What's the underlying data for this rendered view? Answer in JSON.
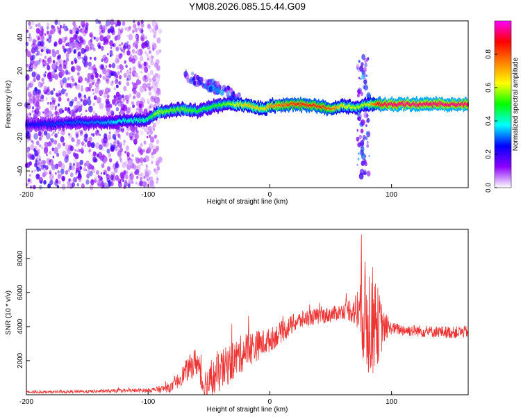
{
  "figure_title": "YM08.2026.085.15.44.G09",
  "chart_data": [
    {
      "type": "heatmap",
      "title": "YM08.2026.085.15.44.G09",
      "xlabel": "Height of straight line (km)",
      "ylabel": "Frequency (Hz)",
      "xlim": [
        -200,
        163
      ],
      "ylim": [
        -50,
        50
      ],
      "xticks": [
        -200,
        -100,
        0,
        100
      ],
      "xtick_labels": [
        "-200",
        "-100",
        "0",
        "100"
      ],
      "yticks": [
        -40,
        -20,
        0,
        20,
        40
      ],
      "ytick_labels": [
        "-40",
        "-20",
        "0",
        "20",
        "40"
      ],
      "colorbar": {
        "label": "Normalized spectral amplitude",
        "range": [
          0,
          1
        ],
        "ticks": [
          0.0,
          0.2,
          0.4,
          0.6,
          0.8
        ],
        "tick_labels": [
          "0.0",
          "0.2",
          "0.4",
          "0.6",
          "0.8"
        ],
        "colors": [
          "#ffffff",
          "#8c00ff",
          "#0000ff",
          "#00ffff",
          "#00ff00",
          "#ffff00",
          "#ff8000",
          "#ff0000",
          "#ff00ff"
        ]
      },
      "ridge": {
        "x": [
          -200,
          -180,
          -160,
          -140,
          -120,
          -100,
          -92,
          -85,
          -70,
          -60,
          -45,
          -35,
          -25,
          -15,
          -5,
          0,
          20,
          40,
          50,
          60,
          70,
          80,
          90,
          100,
          120,
          140,
          163
        ],
        "freq": [
          -12,
          -12,
          -11,
          -11,
          -10,
          -9,
          -5,
          -4,
          -3,
          -4,
          -1,
          0,
          0,
          -1,
          -3,
          -1,
          0,
          -1,
          -3,
          -1,
          -2,
          0,
          0,
          0,
          0,
          0,
          0
        ],
        "amplitude": [
          0.25,
          0.28,
          0.3,
          0.32,
          0.4,
          0.45,
          0.6,
          0.55,
          0.55,
          0.5,
          0.5,
          0.55,
          0.65,
          0.7,
          0.65,
          0.75,
          0.85,
          0.85,
          0.8,
          0.65,
          0.6,
          0.6,
          0.9,
          0.95,
          0.95,
          0.95,
          0.95
        ]
      },
      "features": [
        {
          "name": "noise region",
          "x_range": [
            -200,
            -90
          ],
          "freq_range": [
            -50,
            50
          ],
          "amplitude": 0.15
        },
        {
          "name": "upper branches",
          "x_range": [
            -70,
            -25
          ],
          "freq_range": [
            0,
            20
          ],
          "amplitude": 0.4
        },
        {
          "name": "spike near 78 km",
          "x_range": [
            72,
            82
          ],
          "freq_range": [
            -45,
            30
          ],
          "amplitude": 0.3
        }
      ]
    },
    {
      "type": "line",
      "title": "",
      "xlabel": "Height of straight line (km)",
      "ylabel": "SNR (10 * v/v)",
      "xlim": [
        -200,
        163
      ],
      "ylim": [
        0,
        9700
      ],
      "xticks": [
        -200,
        -100,
        0,
        100
      ],
      "xtick_labels": [
        "-200",
        "-100",
        "0",
        "100"
      ],
      "yticks": [
        2000,
        4000,
        6000,
        8000
      ],
      "ytick_labels": [
        "2000",
        "4000",
        "6000",
        "8000"
      ],
      "color": "#ee3333",
      "trend": {
        "x": [
          -200,
          -160,
          -120,
          -100,
          -90,
          -80,
          -70,
          -60,
          -55,
          -50,
          -40,
          -30,
          -20,
          -10,
          0,
          10,
          20,
          30,
          40,
          50,
          60,
          65,
          70,
          75,
          80,
          85,
          90,
          95,
          100,
          110,
          120,
          130,
          140,
          150,
          163
        ],
        "y": [
          150,
          180,
          230,
          260,
          320,
          450,
          1300,
          2000,
          600,
          700,
          1400,
          2000,
          2600,
          2900,
          3200,
          3700,
          4200,
          4500,
          4600,
          4700,
          4900,
          5000,
          4900,
          5000,
          4500,
          4300,
          4000,
          3900,
          3900,
          3800,
          3750,
          3700,
          3700,
          3650,
          3700
        ]
      },
      "noise": {
        "x": [
          -200,
          -100,
          -80,
          -60,
          -40,
          -20,
          0,
          30,
          60,
          70,
          75,
          80,
          85,
          90,
          95,
          100,
          163
        ],
        "amp": [
          60,
          120,
          300,
          900,
          1200,
          1100,
          700,
          500,
          450,
          900,
          2500,
          3600,
          3200,
          2000,
          700,
          350,
          350
        ]
      }
    }
  ]
}
